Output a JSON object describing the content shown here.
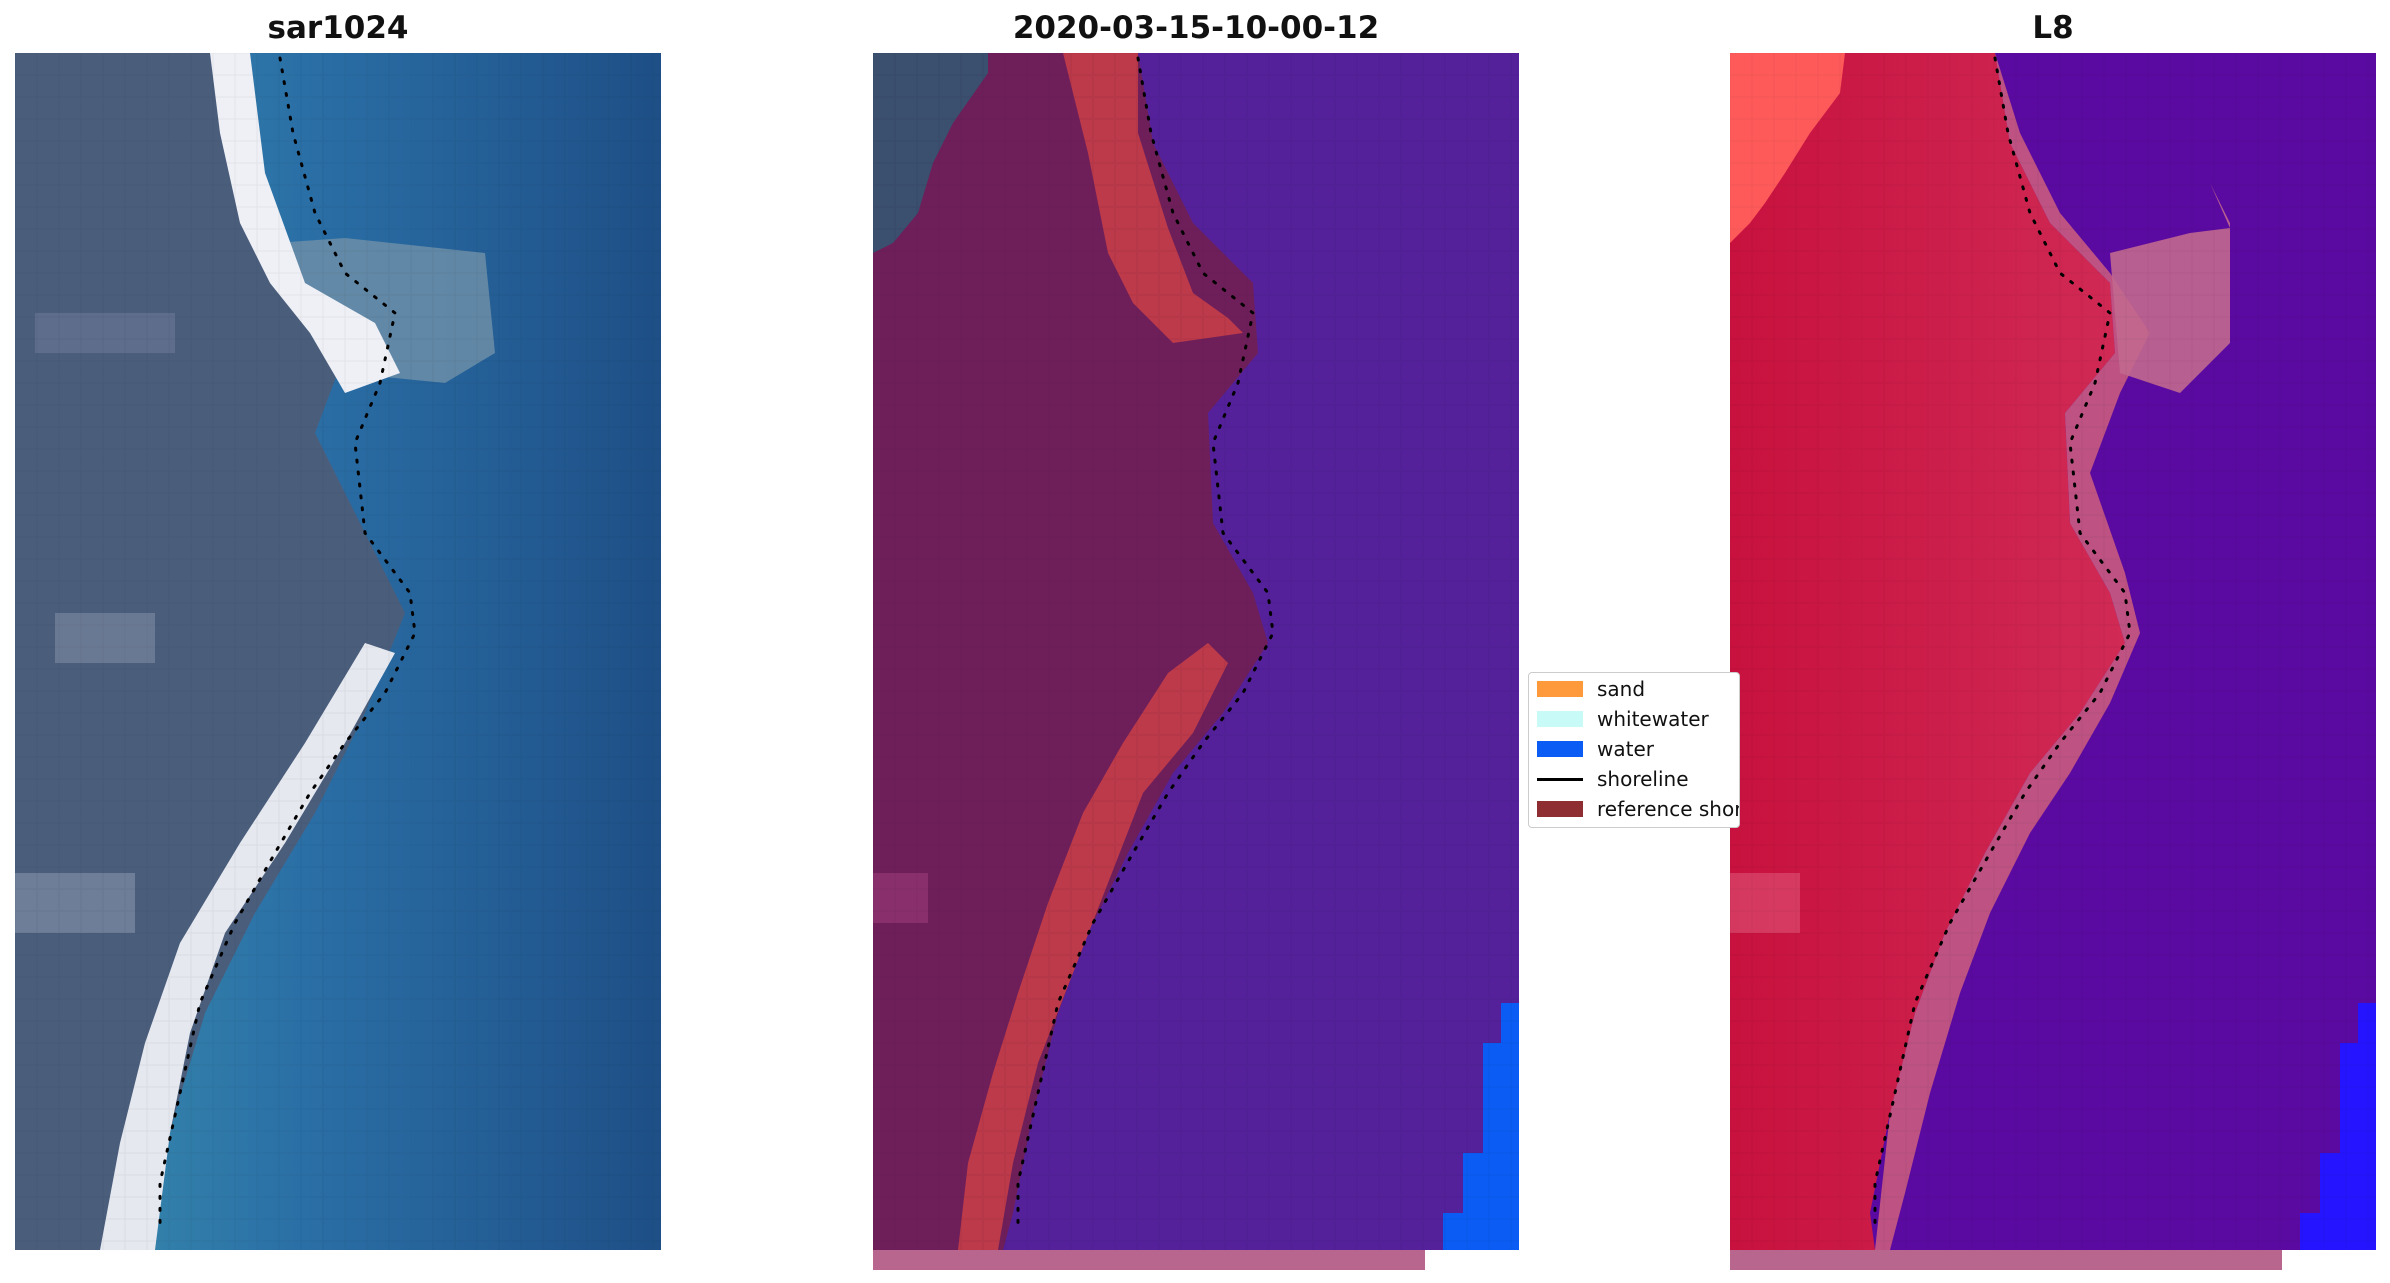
{
  "panels": [
    {
      "title": "sar1024"
    },
    {
      "title": "2020-03-15-10-00-12"
    },
    {
      "title": "L8"
    }
  ],
  "legend": {
    "items": [
      {
        "label": "sand",
        "type": "patch",
        "color": "#ff9a3c"
      },
      {
        "label": "whitewater",
        "type": "patch",
        "color": "#c8fbf8"
      },
      {
        "label": "water",
        "type": "patch",
        "color": "#0a5cf5"
      },
      {
        "label": "shoreline",
        "type": "line",
        "color": "#000000"
      },
      {
        "label": "reference shoreline",
        "type": "patch",
        "color": "#8f2e32"
      }
    ]
  },
  "colors": {
    "rgb_land": "#4a5e7c",
    "rgb_sand": "#eef0f6",
    "rgb_water": "#2a6fa6",
    "rgb_deep_water": "#1e4f86",
    "cls_land": "#6e1f5a",
    "cls_sand": "#bc3a4a",
    "cls_water": "#55219a",
    "cls_water_blue": "#0a5cf5",
    "l8_land": "#c8113e",
    "l8_bright": "#ff5a5a",
    "l8_water": "#5a0aa0",
    "l8_water_blue": "#2514ff",
    "mask_strip": "#b9668f"
  }
}
